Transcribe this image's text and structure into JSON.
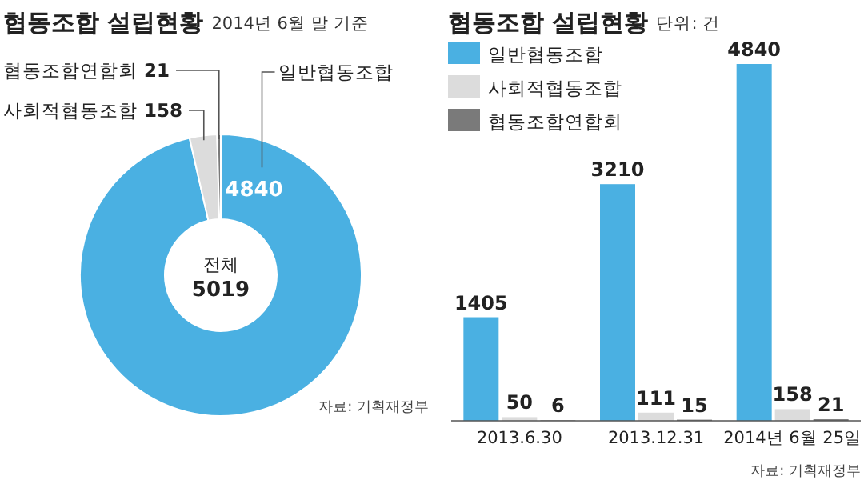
{
  "chart_data": [
    {
      "type": "donut",
      "title": "협동조합 설립현황",
      "subtitle": "2014년 6월 말 기준",
      "categories": [
        "일반협동조합",
        "사회적협동조합",
        "협동조합연합회"
      ],
      "values": [
        4840,
        158,
        21
      ],
      "colors": [
        "#4ab0e2",
        "#dcdcdc",
        "#7a7a7a"
      ],
      "data_labels": true,
      "annotations": [
        "전체",
        "5019",
        "자료: 기획재정부"
      ]
    },
    {
      "type": "bar",
      "title": "협동조합 설립현황",
      "subtitle": "단위: 건",
      "categories": [
        "2013.6.30",
        "2013.12.31",
        "2014년 6월 25일"
      ],
      "series": [
        {
          "name": "일반협동조합",
          "color": "#4ab0e2",
          "values": [
            1405,
            3210,
            4840
          ]
        },
        {
          "name": "사회적협동조합",
          "color": "#dcdcdc",
          "values": [
            50,
            111,
            158
          ]
        },
        {
          "name": "협동조합연합회",
          "color": "#7a7a7a",
          "values": [
            6,
            15,
            21
          ]
        }
      ],
      "data_labels": true,
      "legend": "top left",
      "annotations": [
        "자료: 기획재정부"
      ]
    }
  ]
}
